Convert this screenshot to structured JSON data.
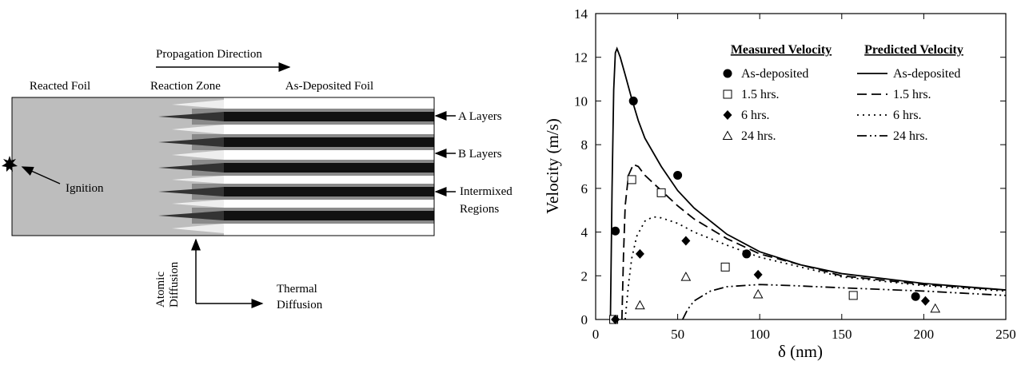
{
  "diagram": {
    "propagation_direction": "Propagation Direction",
    "reacted_foil": "Reacted Foil",
    "reaction_zone": "Reaction Zone",
    "as_deposited_foil": "As-Deposited Foil",
    "a_layers": "A Layers",
    "b_layers": "B Layers",
    "intermixed_regions": [
      "Intermixed",
      "Regions"
    ],
    "ignition": "Ignition",
    "atomic_diffusion": [
      "Atomic",
      "Diffusion"
    ],
    "thermal_diffusion": [
      "Thermal",
      "Diffusion"
    ]
  },
  "chart_data": {
    "type": "scatter",
    "xlabel": "δ (nm)",
    "ylabel": "Velocity (m/s)",
    "xlim": [
      0,
      250
    ],
    "xticks": [
      0,
      50,
      100,
      150,
      200,
      250
    ],
    "ylim": [
      0,
      14
    ],
    "yticks": [
      0,
      2,
      4,
      6,
      8,
      10,
      12,
      14
    ],
    "measured": {
      "title": "Measured Velocity",
      "series": [
        {
          "name": "As-deposited",
          "marker": "circle",
          "x": [
            11,
            12,
            23,
            50,
            92,
            195
          ],
          "values": [
            0,
            4.05,
            10,
            6.6,
            3,
            1.05
          ]
        },
        {
          "name": "1.5 hrs.",
          "marker": "square",
          "x": [
            11,
            22,
            40,
            79,
            157
          ],
          "values": [
            0,
            6.4,
            5.8,
            2.4,
            1.1
          ]
        },
        {
          "name": "6 hrs.",
          "marker": "diamond",
          "x": [
            12,
            27,
            55,
            99,
            201
          ],
          "values": [
            0,
            3,
            3.6,
            2.05,
            0.85
          ]
        },
        {
          "name": "24 hrs.",
          "marker": "triangle",
          "x": [
            27,
            55,
            99,
            207
          ],
          "values": [
            0.65,
            1.95,
            1.15,
            0.5
          ]
        }
      ]
    },
    "predicted": {
      "title": "Predicted Velocity",
      "series": [
        {
          "name": "As-deposited",
          "dash": "solid",
          "x": [
            9,
            10,
            11,
            12,
            13,
            15,
            18,
            22,
            26,
            30,
            40,
            50,
            60,
            80,
            100,
            125,
            150,
            200,
            250
          ],
          "values": [
            0,
            6,
            10.5,
            12.2,
            12.4,
            12.0,
            11.2,
            10.1,
            9.1,
            8.3,
            7,
            5.9,
            5.1,
            3.9,
            3.1,
            2.5,
            2.1,
            1.65,
            1.35
          ]
        },
        {
          "name": "1.5 hrs.",
          "dash": "dashed",
          "x": [
            16,
            17,
            18,
            20,
            23,
            26,
            30,
            40,
            50,
            60,
            80,
            100,
            150,
            200,
            250
          ],
          "values": [
            0,
            3,
            5.2,
            6.6,
            7.1,
            7.0,
            6.6,
            5.9,
            5.2,
            4.6,
            3.7,
            3.0,
            2.0,
            1.6,
            1.35
          ]
        },
        {
          "name": "6 hrs.",
          "dash": "dotted",
          "x": [
            18,
            20,
            22,
            25,
            30,
            35,
            40,
            50,
            60,
            80,
            100,
            150,
            200,
            250
          ],
          "values": [
            0,
            1.6,
            2.8,
            3.8,
            4.5,
            4.7,
            4.65,
            4.4,
            4.0,
            3.4,
            2.85,
            1.95,
            1.55,
            1.3
          ]
        },
        {
          "name": "24 hrs.",
          "dash": "dash-dot-dot",
          "x": [
            53,
            56,
            60,
            70,
            80,
            100,
            120,
            150,
            200,
            250
          ],
          "values": [
            0,
            0.45,
            0.85,
            1.3,
            1.5,
            1.6,
            1.55,
            1.45,
            1.3,
            1.1
          ]
        }
      ]
    }
  }
}
